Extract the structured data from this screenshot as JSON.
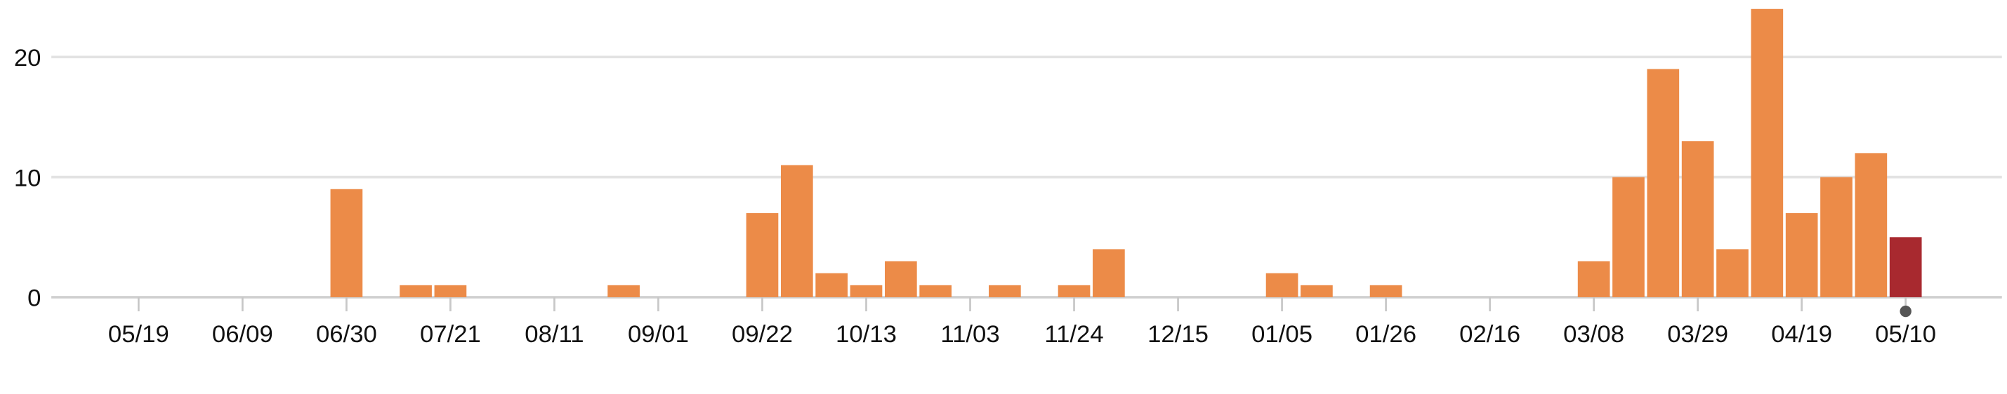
{
  "chart_data": {
    "type": "bar",
    "title": "",
    "xlabel": "",
    "ylabel": "",
    "ylim": [
      0,
      24
    ],
    "yticks": [
      0,
      10,
      20
    ],
    "grid": true,
    "colors": {
      "bar": "#ec8b48",
      "highlight": "#a8292f",
      "marker": "#555555",
      "grid": "#e3e3e3"
    },
    "x_tick_labels": [
      "05/19",
      "06/09",
      "06/30",
      "07/21",
      "08/11",
      "09/01",
      "09/22",
      "10/13",
      "11/03",
      "11/24",
      "12/15",
      "01/05",
      "01/26",
      "02/16",
      "03/08",
      "03/29",
      "04/19",
      "05/10"
    ],
    "categories": [
      "05/12",
      "05/19",
      "05/26",
      "06/02",
      "06/09",
      "06/16",
      "06/23",
      "06/30",
      "07/07",
      "07/14",
      "07/21",
      "07/28",
      "08/04",
      "08/11",
      "08/18",
      "08/25",
      "09/01",
      "09/08",
      "09/15",
      "09/22",
      "09/29",
      "10/06",
      "10/13",
      "10/20",
      "10/27",
      "11/03",
      "11/10",
      "11/17",
      "11/24",
      "12/01",
      "12/08",
      "12/15",
      "12/22",
      "12/29",
      "01/05",
      "01/12",
      "01/19",
      "01/26",
      "02/02",
      "02/09",
      "02/16",
      "02/23",
      "03/01",
      "03/08",
      "03/15",
      "03/22",
      "03/29",
      "04/05",
      "04/12",
      "04/19",
      "04/26",
      "05/03",
      "05/10"
    ],
    "values": [
      0,
      0,
      0,
      0,
      0,
      0,
      0,
      9,
      0,
      1,
      1,
      0,
      0,
      0,
      0,
      1,
      0,
      0,
      0,
      7,
      11,
      2,
      1,
      3,
      1,
      0,
      1,
      0,
      1,
      4,
      0,
      0,
      0,
      0,
      2,
      1,
      0,
      1,
      0,
      0,
      0,
      0,
      0,
      3,
      10,
      19,
      13,
      4,
      24,
      7,
      10,
      12,
      5
    ],
    "highlight_category": "05/10"
  }
}
